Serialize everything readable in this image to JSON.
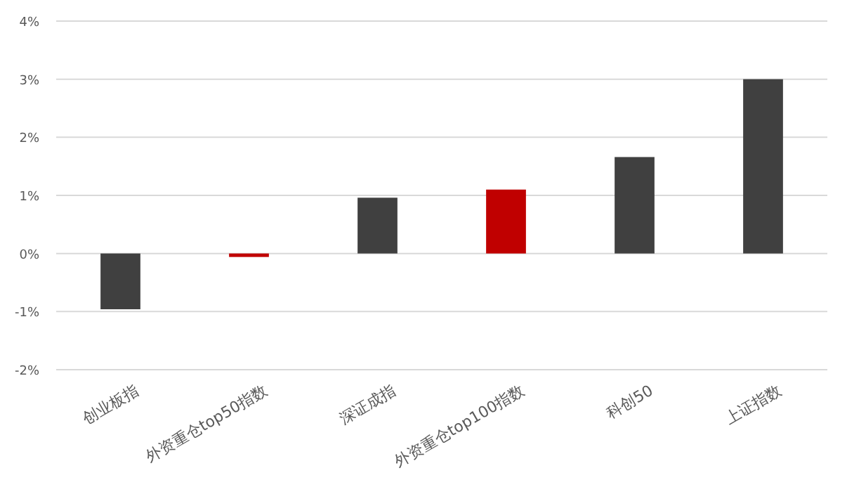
{
  "chart_data": {
    "type": "bar",
    "categories": [
      "创业板指",
      "外资重仓top50指数",
      "深证成指",
      "外资重仓top100指数",
      "科创50",
      "上证指数"
    ],
    "values": [
      -0.96,
      -0.06,
      0.96,
      1.1,
      1.66,
      3.0
    ],
    "colors": [
      "#404040",
      "#c00000",
      "#404040",
      "#c00000",
      "#404040",
      "#404040"
    ],
    "ylim": [
      -2,
      4
    ],
    "yticks": [
      {
        "value": -2,
        "label": "-2%"
      },
      {
        "value": -1,
        "label": "-1%"
      },
      {
        "value": 0,
        "label": "0%"
      },
      {
        "value": 1,
        "label": "1%"
      },
      {
        "value": 2,
        "label": "2%"
      },
      {
        "value": 3,
        "label": "3%"
      },
      {
        "value": 4,
        "label": "4%"
      }
    ],
    "grid": "y"
  }
}
